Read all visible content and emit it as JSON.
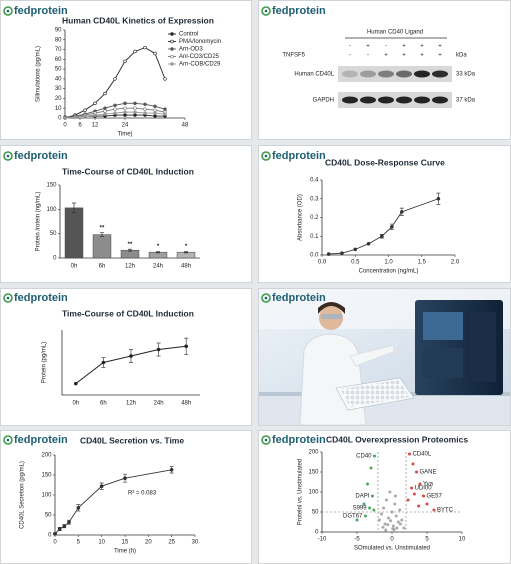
{
  "brand": "fedprotein",
  "blot": {
    "title": "Human CD40 Ligand",
    "treatment": "TNFSF5",
    "unit": "kDa",
    "rows": [
      [
        "-",
        "+",
        "-",
        "+",
        "+",
        "+"
      ],
      [
        "-",
        "-",
        "+",
        "+",
        "+",
        "+"
      ]
    ],
    "bands": [
      {
        "name": "Human CD40L",
        "size": "33 kDa"
      },
      {
        "name": "GAPDH",
        "size": "37 kDa"
      }
    ]
  },
  "chart_data": [
    {
      "type": "line",
      "title": "Human CD40L Kinetics of Expression",
      "x_label": "Time)",
      "y_label": "Sillmulations (pg/mL)",
      "x": [
        0,
        4,
        8,
        12,
        16,
        20,
        24,
        28,
        32,
        36,
        40
      ],
      "xlim": [
        0,
        48
      ],
      "xticks": [
        0,
        6,
        12,
        24,
        48
      ],
      "ylim": [
        0,
        90
      ],
      "yticks": [
        0,
        10,
        20,
        30,
        40,
        50,
        60,
        70,
        80,
        90
      ],
      "series": [
        {
          "name": "Control",
          "color": "#222222",
          "values": [
            1,
            1,
            2,
            2,
            2,
            3,
            3,
            3,
            3,
            2,
            2
          ]
        },
        {
          "name": "PMA/Ionomycin",
          "color": "#222222",
          "values": [
            0,
            3,
            8,
            15,
            25,
            40,
            58,
            68,
            72,
            66,
            40
          ]
        },
        {
          "name": "Arn-OD3",
          "color": "#555555",
          "values": [
            0,
            2,
            4,
            7,
            10,
            13,
            15,
            15,
            14,
            12,
            9
          ]
        },
        {
          "name": "Anl-CO3/CD25",
          "color": "#777777",
          "values": [
            0,
            1,
            3,
            5,
            7,
            9,
            10,
            10,
            9,
            8,
            6
          ]
        },
        {
          "name": "Arn-COB/CD29",
          "color": "#999999",
          "values": [
            0,
            1,
            2,
            3,
            4,
            5,
            6,
            6,
            5,
            5,
            4
          ]
        }
      ]
    },
    {
      "type": "bar",
      "title": "Time-Course of CD40L Induction",
      "y_label": "Protein /rotein (ng/mL)",
      "categories": [
        "0h",
        "6h",
        "12h",
        "24h",
        "48h"
      ],
      "values": [
        103,
        48,
        16,
        12,
        12
      ],
      "errors": [
        10,
        4,
        2,
        1.5,
        1.5
      ],
      "colors": [
        "#555555",
        "#8c8c8c",
        "#8c8c8c",
        "#a0a0a0",
        "#b4b4b4"
      ],
      "annotations": [
        null,
        "**",
        "**",
        "*",
        "*"
      ],
      "ylim": [
        0,
        150
      ],
      "yticks": [
        0,
        50,
        100,
        150
      ]
    },
    {
      "type": "scatter",
      "title": "CD40L Dose-Response Curve",
      "x_label": "Concentration (ng/mL)",
      "y_label": "Absorbance (OD)",
      "xlim": [
        0,
        2
      ],
      "xticks": [
        {
          "value": 0,
          "label": "0.0"
        },
        {
          "value": 0.5,
          "label": "0.5"
        },
        {
          "value": 1,
          "label": "1.0"
        },
        {
          "value": 1.5,
          "label": "1.5"
        },
        {
          "value": 2,
          "label": "2.0"
        }
      ],
      "ylim": [
        0,
        0.4
      ],
      "yticks": [
        {
          "value": 0,
          "label": "0.0"
        },
        0.1,
        0.2,
        0.3,
        0.4
      ],
      "connect": true,
      "series": [
        {
          "color": "#333333",
          "x": [
            0.1,
            0.3,
            0.5,
            0.7,
            0.9,
            1.05,
            1.2,
            1.75
          ],
          "values": [
            0.005,
            0.01,
            0.03,
            0.06,
            0.1,
            0.15,
            0.23,
            0.3
          ],
          "errors": [
            0,
            0,
            0,
            0,
            0.01,
            0.015,
            0.02,
            0.03
          ]
        }
      ]
    },
    {
      "type": "line",
      "title": "Time-Course of CD40L Induction",
      "y_label": "Protein (pg/mL)",
      "categories": [
        "0h",
        "6h",
        "12h",
        "24h",
        "48h"
      ],
      "values": [
        35,
        100,
        120,
        140,
        150
      ],
      "errors": [
        0,
        15,
        20,
        20,
        25
      ],
      "color": "#222222",
      "ylim": [
        0,
        200
      ]
    },
    {
      "type": "scatter",
      "title": "CD40L Secretion vs. Time",
      "x_label": "Time (h)",
      "y_label": "CD40L Secretion (pg/mL)",
      "xlim": [
        0,
        30
      ],
      "xticks": [
        0,
        5,
        10,
        15,
        20,
        25,
        30
      ],
      "ylim": [
        0,
        200
      ],
      "yticks": [
        0,
        50,
        100,
        150,
        200
      ],
      "connect": true,
      "annotation": "R² = 0.083",
      "series": [
        {
          "color": "#333333",
          "x": [
            0,
            1,
            2,
            3,
            5,
            10,
            15,
            25
          ],
          "values": [
            3,
            15,
            22,
            32,
            68,
            122,
            142,
            163
          ],
          "errors": [
            2,
            4,
            4,
            5,
            8,
            8,
            10,
            8
          ]
        }
      ]
    },
    {
      "type": "scatter",
      "title": "CD40L Overexpression Proteomics",
      "x_label": "SOmulated vs. Unstimulated",
      "y_label": "Protelnl vs. Unstimulated",
      "xlim": [
        -10,
        10
      ],
      "xticks": [
        -10,
        -5,
        0,
        5,
        10
      ],
      "ylim": [
        0,
        200
      ],
      "yticks": [
        0,
        50,
        100,
        150,
        200
      ],
      "hlines": [
        50
      ],
      "vlines": [
        -2,
        2
      ],
      "series": [
        {
          "color": "#9a9a9a",
          "x": [
            -1.8,
            -1.5,
            -1.2,
            -1,
            -0.8,
            -0.5,
            -0.3,
            0,
            0.2,
            0.4,
            0.6,
            0.9,
            1.1,
            1.4,
            1.7,
            -1.3,
            -0.6,
            0.1,
            0.7,
            1.2,
            -0.9,
            0.3,
            -0.2,
            0.5
          ],
          "values": [
            30,
            45,
            60,
            20,
            80,
            35,
            100,
            50,
            15,
            70,
            40,
            25,
            55,
            30,
            10,
            12,
            18,
            8,
            10,
            20,
            5,
            6,
            28,
            90
          ]
        },
        {
          "color": "#2e9a3e",
          "x": [
            -2.5,
            -3,
            -3.5,
            -2.8,
            -4,
            -3.2,
            -2.6,
            -3.8,
            -5
          ],
          "values": [
            190,
            160,
            120,
            90,
            70,
            60,
            55,
            40,
            30
          ],
          "labels": [
            "CD40",
            null,
            null,
            "DAPI",
            null,
            "S999",
            null,
            "DGT67",
            null
          ]
        },
        {
          "color": "#d62828",
          "x": [
            2.5,
            3,
            3.5,
            4,
            2.8,
            3.2,
            4.5,
            5,
            6,
            3.8,
            2.3
          ],
          "values": [
            195,
            170,
            150,
            120,
            110,
            95,
            90,
            70,
            55,
            65,
            80
          ],
          "labels": [
            "CD40L",
            null,
            "GANE",
            "Yva",
            "UDI00",
            null,
            "GE57",
            null,
            "BYTC",
            null,
            null
          ]
        }
      ]
    }
  ]
}
